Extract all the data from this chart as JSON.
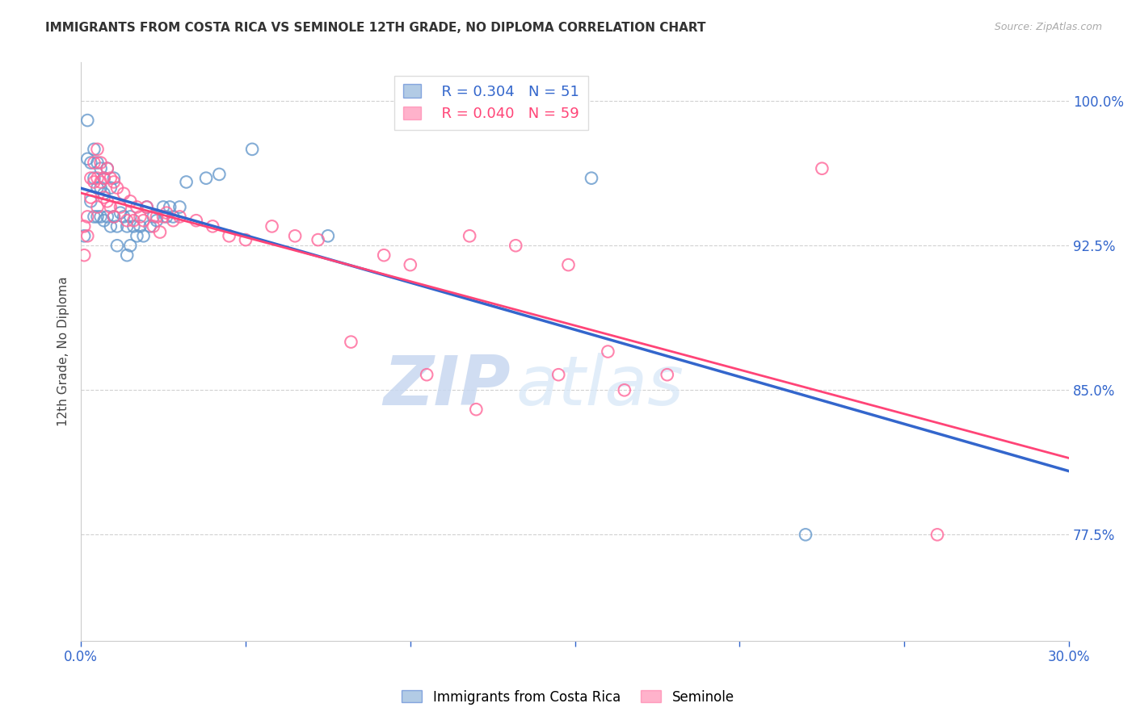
{
  "title": "IMMIGRANTS FROM COSTA RICA VS SEMINOLE 12TH GRADE, NO DIPLOMA CORRELATION CHART",
  "source": "Source: ZipAtlas.com",
  "ylabel": "12th Grade, No Diploma",
  "xlim": [
    0.0,
    0.3
  ],
  "ylim": [
    0.72,
    1.02
  ],
  "yticks": [
    0.775,
    0.85,
    0.925,
    1.0
  ],
  "ytick_labels": [
    "77.5%",
    "85.0%",
    "92.5%",
    "100.0%"
  ],
  "xticks": [
    0.0,
    0.05,
    0.1,
    0.15,
    0.2,
    0.25,
    0.3
  ],
  "legend_R1": "R = 0.304",
  "legend_N1": "N = 51",
  "legend_R2": "R = 0.040",
  "legend_N2": "N = 59",
  "watermark_zip": "ZIP",
  "watermark_atlas": "atlas",
  "color_blue": "#6699CC",
  "color_pink": "#FF6699",
  "color_blue_line": "#3366CC",
  "color_pink_line": "#FF4477",
  "color_tick": "#3366CC",
  "blue_x": [
    0.001,
    0.002,
    0.002,
    0.003,
    0.003,
    0.004,
    0.004,
    0.004,
    0.005,
    0.005,
    0.005,
    0.006,
    0.006,
    0.006,
    0.007,
    0.007,
    0.007,
    0.008,
    0.008,
    0.009,
    0.009,
    0.01,
    0.01,
    0.011,
    0.011,
    0.012,
    0.013,
    0.014,
    0.014,
    0.015,
    0.015,
    0.016,
    0.017,
    0.018,
    0.019,
    0.02,
    0.021,
    0.022,
    0.023,
    0.025,
    0.026,
    0.027,
    0.028,
    0.03,
    0.032,
    0.038,
    0.042,
    0.052,
    0.075,
    0.155,
    0.22
  ],
  "blue_y": [
    0.93,
    0.99,
    0.97,
    0.968,
    0.948,
    0.975,
    0.96,
    0.94,
    0.968,
    0.955,
    0.94,
    0.965,
    0.955,
    0.94,
    0.96,
    0.952,
    0.938,
    0.965,
    0.94,
    0.955,
    0.935,
    0.96,
    0.94,
    0.935,
    0.925,
    0.942,
    0.94,
    0.935,
    0.92,
    0.94,
    0.925,
    0.935,
    0.93,
    0.935,
    0.93,
    0.945,
    0.935,
    0.94,
    0.938,
    0.945,
    0.94,
    0.945,
    0.94,
    0.945,
    0.958,
    0.96,
    0.962,
    0.975,
    0.93,
    0.96,
    0.775
  ],
  "pink_x": [
    0.001,
    0.001,
    0.002,
    0.002,
    0.003,
    0.003,
    0.004,
    0.004,
    0.005,
    0.005,
    0.005,
    0.006,
    0.006,
    0.007,
    0.007,
    0.008,
    0.008,
    0.009,
    0.009,
    0.01,
    0.01,
    0.011,
    0.012,
    0.013,
    0.014,
    0.015,
    0.016,
    0.017,
    0.018,
    0.019,
    0.02,
    0.022,
    0.023,
    0.024,
    0.025,
    0.026,
    0.028,
    0.03,
    0.035,
    0.04,
    0.045,
    0.05,
    0.058,
    0.065,
    0.072,
    0.082,
    0.092,
    0.105,
    0.118,
    0.132,
    0.148,
    0.165,
    0.178,
    0.1,
    0.12,
    0.145,
    0.16,
    0.225,
    0.26
  ],
  "pink_y": [
    0.935,
    0.92,
    0.94,
    0.93,
    0.96,
    0.95,
    0.968,
    0.958,
    0.975,
    0.96,
    0.945,
    0.968,
    0.958,
    0.96,
    0.95,
    0.965,
    0.948,
    0.96,
    0.945,
    0.958,
    0.94,
    0.955,
    0.945,
    0.952,
    0.938,
    0.948,
    0.938,
    0.945,
    0.94,
    0.938,
    0.945,
    0.935,
    0.94,
    0.932,
    0.94,
    0.942,
    0.938,
    0.94,
    0.938,
    0.935,
    0.93,
    0.928,
    0.935,
    0.93,
    0.928,
    0.875,
    0.92,
    0.858,
    0.93,
    0.925,
    0.915,
    0.85,
    0.858,
    0.915,
    0.84,
    0.858,
    0.87,
    0.965,
    0.775
  ]
}
